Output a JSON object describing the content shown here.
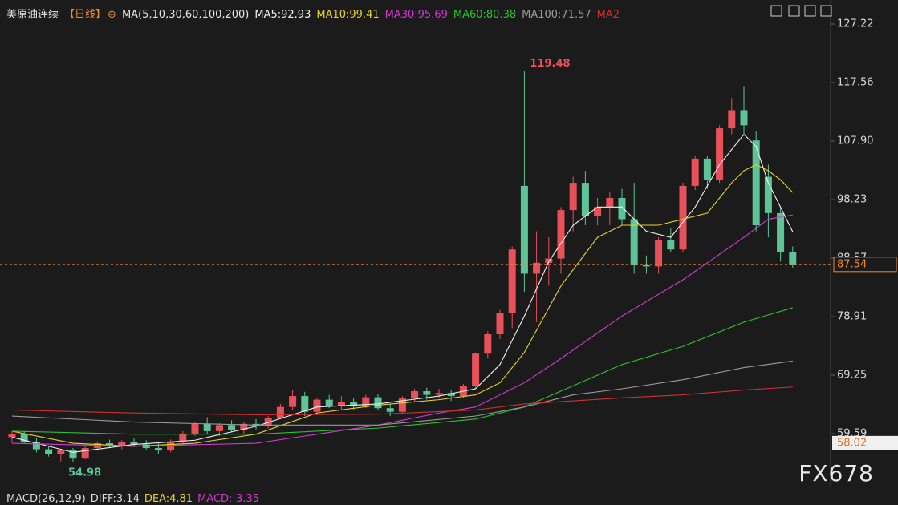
{
  "chart_data": {
    "type": "candlestick",
    "title": "美原油连续",
    "period": "【日线】",
    "indicator": "MA(5,10,30,60,100,200)",
    "up_color": "#e8515a",
    "down_color": "#5cc497",
    "open": [
      59,
      59.5,
      58.2,
      57,
      56.2,
      56.8,
      55.6,
      57.2,
      58,
      57.6,
      58.2,
      57.8,
      57.2,
      56.8,
      58.3,
      59.6,
      61.2,
      60,
      61,
      60.2,
      61.2,
      60.8,
      62.2,
      64,
      65.8,
      63.2,
      65.2,
      64.2,
      64.8,
      64.2,
      65.6,
      63.8,
      63.2,
      65.4,
      66.6,
      66,
      66.3,
      65.8,
      67.4,
      72.8,
      76,
      79.5,
      100.5,
      86,
      87.8,
      88.5,
      96.5,
      101,
      95.5,
      97,
      98.5,
      95,
      87.5,
      87.2,
      91.5,
      90,
      100.5,
      105,
      101.5,
      110,
      113,
      108,
      102,
      96,
      89.5
    ],
    "high": [
      60,
      60,
      58.8,
      57.5,
      57,
      57.2,
      57.5,
      58.3,
      58.6,
      58.5,
      58.8,
      58.5,
      58,
      58.6,
      60,
      61.5,
      62.3,
      61.3,
      61.8,
      61.5,
      62,
      62.5,
      64.5,
      66.8,
      66.5,
      65.5,
      66,
      65.8,
      65.5,
      66,
      66.2,
      64.5,
      65.8,
      67,
      67.2,
      67,
      66.8,
      67.8,
      73,
      76.5,
      80,
      90.5,
      119.48,
      93,
      92,
      97,
      102,
      103,
      98.5,
      99.5,
      100,
      101,
      89,
      92,
      93.5,
      101,
      105.5,
      105.5,
      110.5,
      115,
      117,
      109.5,
      104,
      97,
      90.5
    ],
    "low": [
      58,
      58,
      56.5,
      55.8,
      55,
      54.98,
      55.4,
      56.8,
      57.2,
      57,
      57.5,
      56.8,
      56.2,
      56.5,
      57.8,
      59.2,
      59.5,
      59.2,
      59.8,
      59.6,
      60.3,
      60.5,
      62,
      63.5,
      62.5,
      62.8,
      63.8,
      63.5,
      63.6,
      63.8,
      63.5,
      62.5,
      62.8,
      64.8,
      65.2,
      65.5,
      65,
      65.4,
      67,
      72,
      75.2,
      77,
      83,
      78,
      84,
      86,
      93,
      94,
      94,
      94,
      94,
      86,
      86,
      86,
      89.5,
      89.5,
      99.8,
      100,
      101,
      109,
      109,
      93,
      92,
      88,
      87
    ],
    "close": [
      59.5,
      58.2,
      57,
      56.2,
      56.8,
      55.6,
      57.2,
      58,
      57.6,
      58.2,
      57.8,
      57.2,
      56.8,
      58.3,
      59.6,
      61.2,
      60,
      61,
      60.2,
      61.2,
      60.8,
      62.2,
      64,
      65.8,
      63.2,
      65.2,
      64.2,
      64.8,
      64.2,
      65.6,
      63.8,
      63.2,
      65.4,
      66.6,
      66,
      66.3,
      65.8,
      67.4,
      72.8,
      76,
      79.5,
      90,
      86,
      87.8,
      88.5,
      96.5,
      101,
      95.5,
      97,
      98.5,
      95,
      87.5,
      87.2,
      91.5,
      90,
      100.5,
      105,
      101.5,
      110,
      113,
      110.5,
      94,
      96,
      89.5,
      87.54
    ],
    "series": [
      {
        "name": "MA5:92.93",
        "color": "#f2f2f2",
        "x": [
          0,
          5,
          10,
          15,
          20,
          25,
          30,
          35,
          38,
          40,
          42,
          44,
          46,
          48,
          50,
          52,
          54,
          56,
          58,
          60,
          61,
          62,
          63,
          64
        ],
        "values": [
          59,
          56.5,
          57.8,
          58.5,
          60.8,
          64,
          64.5,
          65.8,
          67,
          71,
          79,
          88,
          94,
          97,
          97,
          93,
          92,
          97,
          104,
          109,
          107,
          101,
          97,
          92.93
        ]
      },
      {
        "name": "MA10:99.41",
        "color": "#e6d22a",
        "x": [
          0,
          5,
          10,
          15,
          20,
          25,
          30,
          35,
          38,
          40,
          42,
          45,
          48,
          50,
          53,
          55,
          57,
          59,
          60,
          61,
          62,
          63,
          64
        ],
        "values": [
          60,
          58,
          57.5,
          58,
          59.5,
          63,
          64.3,
          65.2,
          66,
          68,
          73,
          84,
          92,
          94,
          94,
          95,
          96,
          101,
          103,
          104,
          103,
          101.5,
          99.41
        ]
      },
      {
        "name": "MA30:95.69",
        "color": "#d23ad2",
        "x": [
          0,
          10,
          20,
          30,
          35,
          38,
          40,
          42,
          45,
          50,
          55,
          60,
          62,
          64
        ],
        "values": [
          58,
          57.5,
          58,
          61,
          63,
          64,
          66,
          68,
          72,
          79,
          85,
          92,
          95,
          95.69
        ]
      },
      {
        "name": "MA60:80.38",
        "color": "#2fbf2f",
        "x": [
          0,
          10,
          20,
          30,
          38,
          42,
          46,
          50,
          55,
          60,
          64
        ],
        "values": [
          60,
          59.5,
          59.5,
          60.5,
          62,
          64,
          67.5,
          71,
          74,
          78,
          80.38
        ]
      },
      {
        "name": "MA100:71.57",
        "color": "#9a9a9a",
        "x": [
          0,
          10,
          20,
          30,
          38,
          42,
          46,
          50,
          55,
          60,
          64
        ],
        "values": [
          62.5,
          61.5,
          61,
          61,
          62.5,
          64,
          66,
          67,
          68.5,
          70.5,
          71.57
        ]
      },
      {
        "name": "MA2",
        "color": "#d03030",
        "x": [
          0,
          10,
          20,
          30,
          38,
          42,
          50,
          55,
          60,
          64
        ],
        "values": [
          63.5,
          63,
          62.7,
          62.8,
          63.5,
          64.5,
          65.5,
          66,
          66.8,
          67.3
        ]
      }
    ],
    "ylim": [
      51.12,
      131.19
    ],
    "yticks": [
      59.59,
      69.25,
      78.91,
      88.57,
      98.23,
      {
        "value": 107.9,
        "label": "107.90"
      },
      117.56,
      127.22
    ],
    "current_price": 87.54,
    "range_low_marker": 58.02,
    "macd_header": [
      "MACD(26,12,9)",
      "DIFF:3.14",
      "DEA:4.81",
      "MACD:-3.35"
    ],
    "watermark": "FX678"
  }
}
